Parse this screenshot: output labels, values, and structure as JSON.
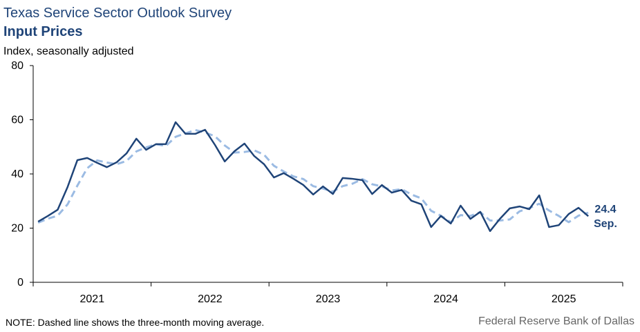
{
  "chart_data": {
    "type": "line",
    "title": "Texas Service Sector Outlook Survey",
    "subtitle": "Input Prices",
    "y_label": "Index, seasonally adjusted",
    "note": "NOTE: Dashed line shows the three-month moving average.",
    "source": "Federal Reserve Bank of Dallas",
    "annotation": "Sep.",
    "x": [
      2021.042,
      2021.125,
      2021.208,
      2021.292,
      2021.375,
      2021.458,
      2021.542,
      2021.625,
      2021.708,
      2021.792,
      2021.875,
      2021.958,
      2022.042,
      2022.125,
      2022.208,
      2022.292,
      2022.375,
      2022.458,
      2022.542,
      2022.625,
      2022.708,
      2022.792,
      2022.875,
      2022.958,
      2023.042,
      2023.125,
      2023.208,
      2023.292,
      2023.375,
      2023.458,
      2023.542,
      2023.625,
      2023.708,
      2023.792,
      2023.875,
      2023.958,
      2024.042,
      2024.125,
      2024.208,
      2024.292,
      2024.375,
      2024.458,
      2024.542,
      2024.625,
      2024.708,
      2024.792,
      2024.875,
      2024.958,
      2025.042,
      2025.125,
      2025.208,
      2025.292,
      2025.375,
      2025.458,
      2025.542,
      2025.625,
      2025.708
    ],
    "series": [
      {
        "color": "#1f4478",
        "dash": false,
        "values": [
          22.4,
          24.5,
          26.8,
          35.2,
          45.1,
          45.9,
          44.1,
          42.5,
          44.3,
          47.6,
          53.0,
          48.9,
          51.0,
          51.0,
          59.1,
          54.8,
          54.8,
          56.3,
          50.7,
          44.6,
          48.4,
          51.2,
          46.6,
          43.6,
          38.7,
          40.3,
          38.2,
          35.9,
          32.4,
          35.4,
          32.6,
          38.5,
          38.2,
          37.7,
          32.6,
          35.9,
          33.1,
          34.1,
          30.1,
          28.8,
          20.4,
          24.5,
          21.7,
          28.3,
          23.4,
          26.0,
          18.9,
          23.4,
          27.3,
          28.0,
          27.0,
          32.1,
          20.4,
          21.1,
          25.2,
          27.5,
          24.4
        ]
      },
      {
        "color": "#9bbbe3",
        "dash": true,
        "values": [
          22.0,
          23.5,
          24.6,
          28.8,
          35.7,
          42.1,
          45.0,
          44.2,
          43.6,
          44.8,
          48.3,
          49.8,
          51.0,
          50.3,
          53.7,
          55.0,
          56.2,
          55.3,
          53.9,
          50.5,
          47.9,
          48.1,
          48.7,
          47.1,
          43.0,
          40.9,
          39.1,
          38.1,
          35.5,
          34.6,
          33.5,
          35.5,
          36.4,
          38.1,
          36.2,
          35.4,
          33.9,
          34.4,
          32.4,
          31.0,
          26.4,
          24.6,
          22.2,
          24.8,
          24.5,
          25.9,
          22.8,
          22.8,
          23.2,
          26.2,
          27.4,
          29.0,
          26.5,
          24.5,
          22.2,
          24.6,
          25.7
        ]
      }
    ],
    "xlim": [
      2021,
      2026
    ],
    "xtick_marks": [
      2021,
      2022,
      2023,
      2024,
      2025,
      2026
    ],
    "xticks": [
      {
        "value": 2021.5,
        "label": "2021"
      },
      {
        "value": 2022.5,
        "label": "2022"
      },
      {
        "value": 2023.5,
        "label": "2023"
      },
      {
        "value": 2024.5,
        "label": "2024"
      },
      {
        "value": 2025.5,
        "label": "2025"
      }
    ],
    "ylim": [
      0,
      80
    ],
    "yticks": [
      0,
      20,
      40,
      60,
      80
    ]
  }
}
